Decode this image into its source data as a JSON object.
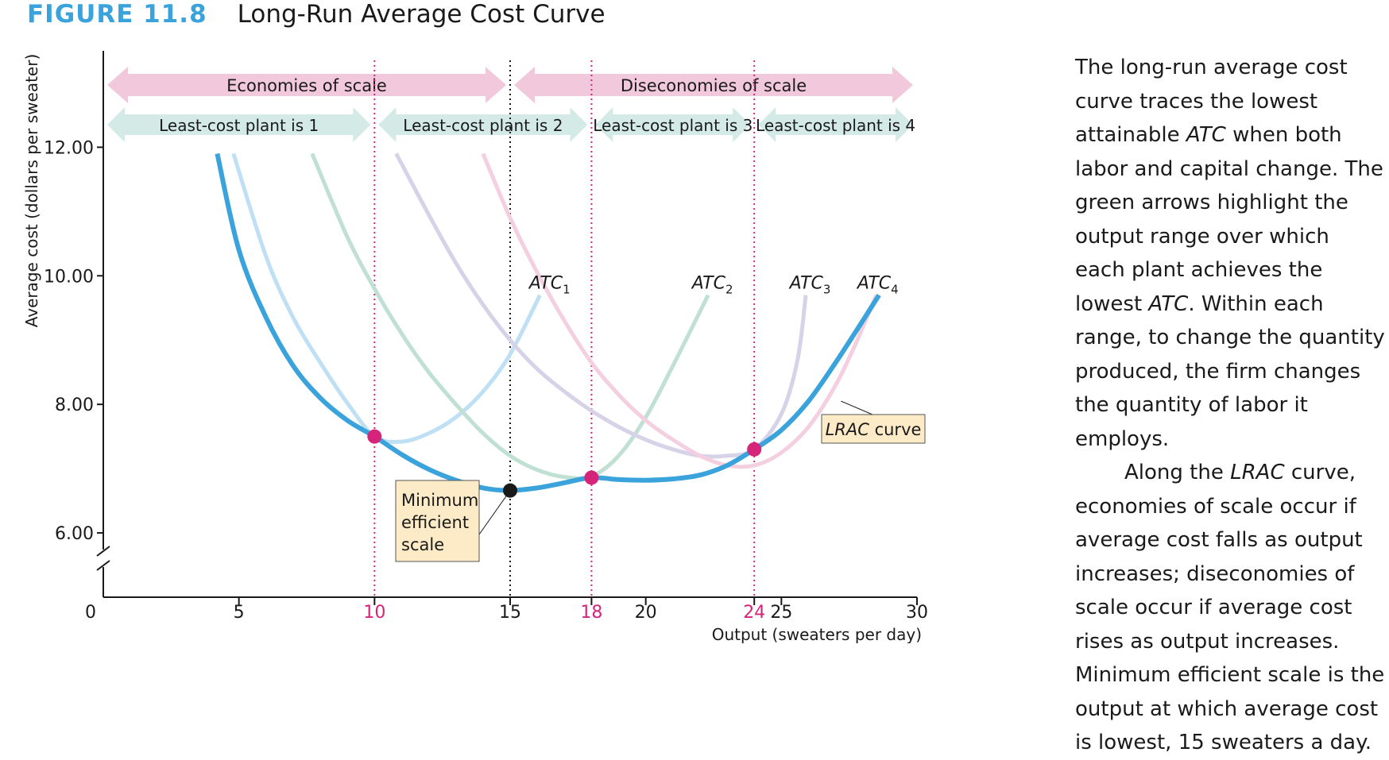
{
  "figure": {
    "number": "FIGURE 11.8",
    "title": "Long-Run Average Cost Curve"
  },
  "caption": {
    "paragraph1_html": "The long-run average cost curve traces the lowest attain&shy;able <i>ATC</i> when both labor and capital change. The green arrows highlight the output range over which each plant achieves the lowest <i>ATC</i>. Within each range, to change the quantity pro&shy;duced, the firm changes the quantity of labor it employs.",
    "paragraph2_html": "Along the <i>LRAC</i> curve, economies of scale occur if average cost falls as output increases; diseconomies of scale occur if average cost rises as output increases. Minimum efficient scale is the output at which average cost is lowest, 15 sweaters a day."
  },
  "colors": {
    "lrac": "#3aa3dc",
    "atc1": "#bfe0f4",
    "atc2": "#bfe0d2",
    "atc3": "#d6d2e8",
    "atc4": "#f4cfe0",
    "highlight": "#d6247a",
    "scale_arrow": "#f2c8dc",
    "plant_arrow": "#d3eae6",
    "label_box": "#fdebc8"
  },
  "chart_data": {
    "type": "line",
    "xlabel": "Output (sweaters per day)",
    "ylabel": "Average cost (dollars per sweater)",
    "xlim": [
      0,
      30
    ],
    "ylim": [
      5,
      13.5
    ],
    "axis_break": true,
    "x_ticks": [
      {
        "value": 0,
        "label": "0",
        "highlight": false
      },
      {
        "value": 5,
        "label": "5",
        "highlight": false
      },
      {
        "value": 10,
        "label": "10",
        "highlight": true
      },
      {
        "value": 15,
        "label": "15",
        "highlight": false
      },
      {
        "value": 18,
        "label": "18",
        "highlight": true
      },
      {
        "value": 20,
        "label": "20",
        "highlight": false
      },
      {
        "value": 24,
        "label": "24",
        "highlight": true
      },
      {
        "value": 25,
        "label": "25",
        "highlight": false
      },
      {
        "value": 30,
        "label": "30",
        "highlight": false
      }
    ],
    "y_ticks": [
      {
        "value": 6,
        "label": "6.00"
      },
      {
        "value": 8,
        "label": "8.00"
      },
      {
        "value": 10,
        "label": "10.00"
      },
      {
        "value": 12,
        "label": "12.00"
      }
    ],
    "series": [
      {
        "name": "ATC1",
        "label_main": "ATC",
        "label_sub": "1",
        "label_x": 15.7,
        "label_y": 9.8,
        "color_key": "atc1",
        "points": [
          [
            4.8,
            11.9
          ],
          [
            6,
            10.3
          ],
          [
            7,
            9.35
          ],
          [
            8,
            8.65
          ],
          [
            9,
            8.02
          ],
          [
            10,
            7.5
          ],
          [
            11,
            7.42
          ],
          [
            12,
            7.55
          ],
          [
            13,
            7.8
          ],
          [
            14,
            8.2
          ],
          [
            15,
            8.78
          ],
          [
            16.1,
            9.7
          ]
        ]
      },
      {
        "name": "ATC2",
        "label_main": "ATC",
        "label_sub": "2",
        "label_x": 21.7,
        "label_y": 9.8,
        "color_key": "atc2",
        "points": [
          [
            7.7,
            11.9
          ],
          [
            9,
            10.6
          ],
          [
            10,
            9.8
          ],
          [
            11,
            9.1
          ],
          [
            12,
            8.5
          ],
          [
            13,
            8.0
          ],
          [
            14,
            7.55
          ],
          [
            15,
            7.2
          ],
          [
            16,
            6.98
          ],
          [
            17,
            6.87
          ],
          [
            18,
            6.88
          ],
          [
            19,
            7.2
          ],
          [
            20,
            7.8
          ],
          [
            21,
            8.6
          ],
          [
            22.3,
            9.7
          ]
        ]
      },
      {
        "name": "ATC3",
        "label_main": "ATC",
        "label_sub": "3",
        "label_x": 25.3,
        "label_y": 9.8,
        "color_key": "atc3",
        "points": [
          [
            10.8,
            11.9
          ],
          [
            12,
            10.95
          ],
          [
            13,
            10.2
          ],
          [
            14,
            9.55
          ],
          [
            15,
            9.0
          ],
          [
            16,
            8.55
          ],
          [
            17,
            8.2
          ],
          [
            18,
            7.9
          ],
          [
            19,
            7.65
          ],
          [
            20,
            7.45
          ],
          [
            21,
            7.3
          ],
          [
            22,
            7.2
          ],
          [
            23,
            7.2
          ],
          [
            24,
            7.3
          ],
          [
            25,
            7.85
          ],
          [
            25.6,
            8.7
          ],
          [
            25.9,
            9.7
          ]
        ]
      },
      {
        "name": "ATC4",
        "label_main": "ATC",
        "label_sub": "4",
        "label_x": 27.8,
        "label_y": 9.8,
        "color_key": "atc4",
        "points": [
          [
            14,
            11.9
          ],
          [
            15,
            10.9
          ],
          [
            16,
            10.05
          ],
          [
            17,
            9.3
          ],
          [
            18,
            8.65
          ],
          [
            19,
            8.15
          ],
          [
            20,
            7.75
          ],
          [
            21,
            7.45
          ],
          [
            22,
            7.2
          ],
          [
            23,
            7.05
          ],
          [
            24,
            7.05
          ],
          [
            25,
            7.25
          ],
          [
            26,
            7.65
          ],
          [
            27,
            8.3
          ],
          [
            27.8,
            9.0
          ],
          [
            28.5,
            9.7
          ]
        ]
      },
      {
        "name": "LRAC curve",
        "label_main": "LRAC",
        "label_tail": " curve",
        "color_key": "lrac",
        "points": [
          [
            4.2,
            11.9
          ],
          [
            5,
            10.4
          ],
          [
            6,
            9.35
          ],
          [
            7,
            8.6
          ],
          [
            8,
            8.1
          ],
          [
            9,
            7.75
          ],
          [
            10,
            7.5
          ],
          [
            11,
            7.22
          ],
          [
            12,
            6.99
          ],
          [
            13,
            6.82
          ],
          [
            14,
            6.7
          ],
          [
            15,
            6.66
          ],
          [
            16,
            6.7
          ],
          [
            17,
            6.78
          ],
          [
            18,
            6.86
          ],
          [
            19,
            6.83
          ],
          [
            20,
            6.82
          ],
          [
            21,
            6.84
          ],
          [
            22,
            6.9
          ],
          [
            23,
            7.05
          ],
          [
            24,
            7.3
          ],
          [
            25,
            7.6
          ],
          [
            26,
            8.05
          ],
          [
            27,
            8.65
          ],
          [
            28,
            9.3
          ],
          [
            28.6,
            9.7
          ]
        ]
      }
    ],
    "key_points": [
      {
        "x": 10,
        "y": 7.5,
        "color_key": "highlight"
      },
      {
        "x": 18,
        "y": 6.86,
        "color_key": "highlight"
      },
      {
        "x": 24,
        "y": 7.3,
        "color_key": "highlight"
      },
      {
        "x": 15,
        "y": 6.66,
        "color": "#1a1a1a"
      }
    ],
    "vertical_lines": [
      {
        "x": 10,
        "color_key": "highlight"
      },
      {
        "x": 15,
        "color": "#1a1a1a"
      },
      {
        "x": 18,
        "color_key": "highlight"
      },
      {
        "x": 24,
        "color_key": "highlight"
      }
    ],
    "scale_ranges": [
      {
        "label": "Economies of scale",
        "from": 0,
        "to": 15
      },
      {
        "label": "Diseconomies of scale",
        "from": 15,
        "to": 30
      }
    ],
    "plant_ranges": [
      {
        "label": "Least-cost plant is 1",
        "from": 0,
        "to": 10
      },
      {
        "label": "Least-cost plant is 2",
        "from": 10,
        "to": 18
      },
      {
        "label": "Least-cost plant is 3",
        "from": 18,
        "to": 24
      },
      {
        "label": "Least-cost plant is 4",
        "from": 24,
        "to": 30
      }
    ],
    "annotations": [
      {
        "name": "minimum-efficient-scale-label",
        "lines": [
          "Minimum",
          "efficient",
          "scale"
        ],
        "target_x": 15,
        "target_y": 6.66
      },
      {
        "name": "lrac-label",
        "text_main": "LRAC",
        "text_tail": " curve",
        "target_x": 27.2,
        "target_y": 8.05
      }
    ]
  }
}
